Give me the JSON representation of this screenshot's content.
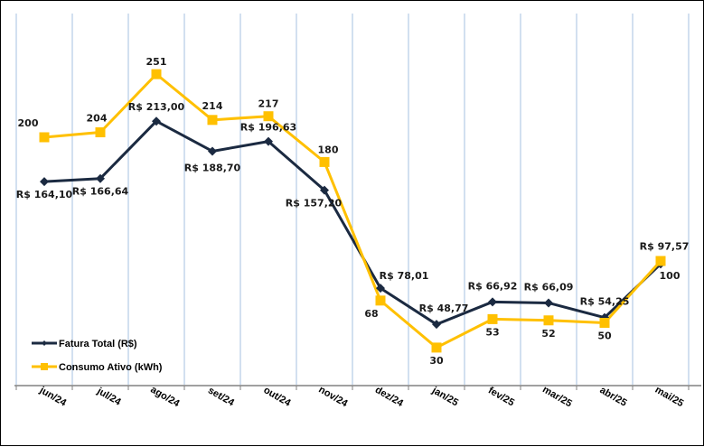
{
  "chart_data": {
    "type": "line",
    "title": "",
    "xlabel": "",
    "ylabel": "",
    "categories": [
      "jun/24",
      "jul/24",
      "ago/24",
      "set/24",
      "out/24",
      "nov/24",
      "dez/24",
      "jan/25",
      "fev/25",
      "mar/25",
      "abr/25",
      "mai/25"
    ],
    "ylim": [
      0,
      300
    ],
    "grid": "vertical",
    "legend_position": "bottom-left",
    "series": [
      {
        "name": "Fatura Total (R$)",
        "color": "#1b2a41",
        "marker": "diamond",
        "values": [
          164.1,
          166.64,
          213.0,
          188.7,
          196.63,
          157.2,
          78.01,
          48.77,
          66.92,
          66.09,
          54.25,
          97.57
        ],
        "labels": [
          "R$ 164,10",
          "R$ 166,64",
          "R$ 213,00",
          "R$ 188,70",
          "R$ 196,63",
          "R$ 157,20",
          "R$ 78,01",
          "R$ 48,77",
          "R$ 66,92",
          "R$ 66,09",
          "R$ 54,25",
          "R$ 97,57"
        ]
      },
      {
        "name": "Consumo Ativo (kWh)",
        "color": "#ffc000",
        "marker": "square",
        "values": [
          200,
          204,
          251,
          214,
          217,
          180,
          68,
          30,
          53,
          52,
          50,
          100
        ],
        "labels": [
          "200",
          "204",
          "251",
          "214",
          "217",
          "180",
          "68",
          "30",
          "53",
          "52",
          "50",
          "100"
        ]
      }
    ],
    "colors": {
      "gridline": "#a6c0e0",
      "axis": "#808080"
    }
  }
}
